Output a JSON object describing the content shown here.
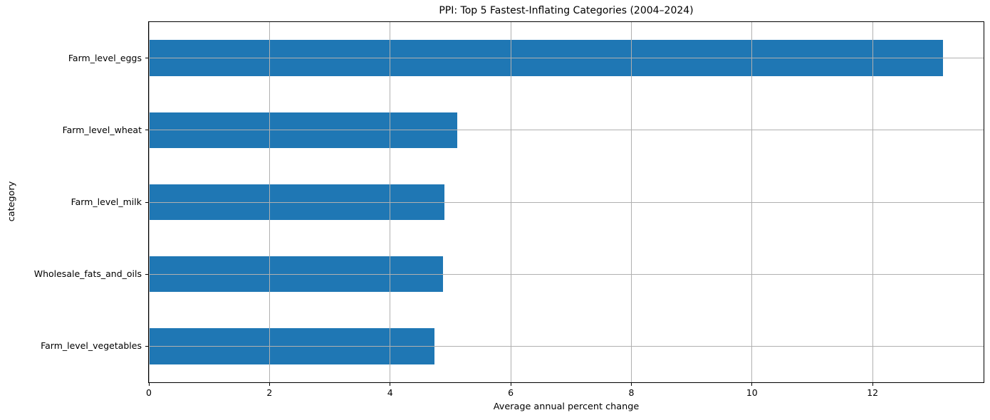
{
  "chart_data": {
    "type": "bar",
    "orientation": "horizontal",
    "title": "PPI: Top 5 Fastest-Inflating Categories (2004–2024)",
    "xlabel": "Average annual percent change",
    "ylabel": "category",
    "categories": [
      "Farm_level_eggs",
      "Farm_level_wheat",
      "Farm_level_milk",
      "Wholesale_fats_and_oils",
      "Farm_level_vegetables"
    ],
    "values": [
      13.17,
      5.11,
      4.9,
      4.88,
      4.73
    ],
    "xticks": [
      0,
      2,
      4,
      6,
      8,
      10,
      12
    ],
    "xlim": [
      0,
      13.84
    ],
    "bar_width_fraction": 0.5,
    "grid": true,
    "legend": false,
    "colors": {
      "bar": "#1f77b4",
      "grid": "#b0b0b0",
      "spine": "#000000",
      "text": "#000000",
      "background": "#ffffff"
    }
  }
}
